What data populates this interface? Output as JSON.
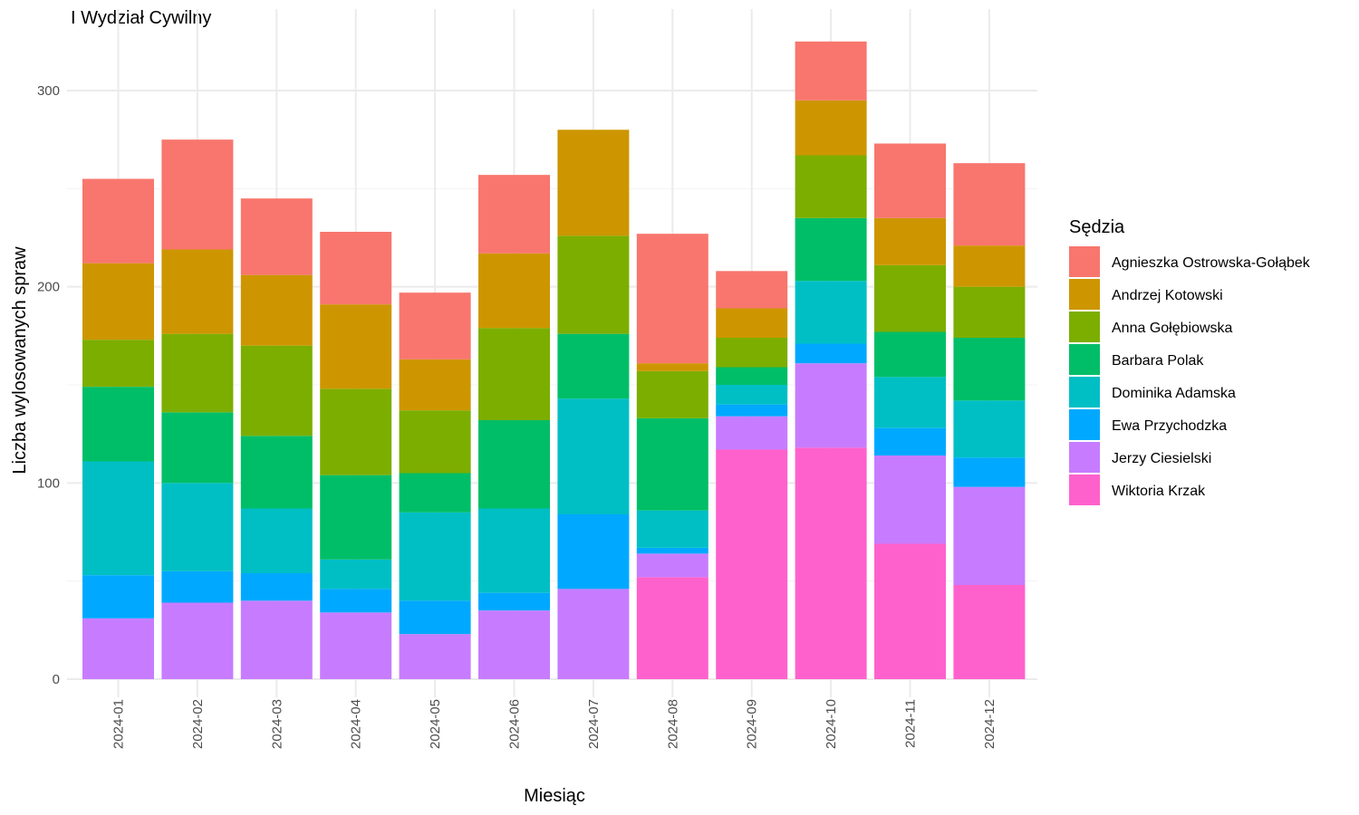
{
  "chart_data": {
    "type": "bar",
    "stacked": true,
    "title": "I Wydział Cywilny",
    "xlabel": "Miesiąc",
    "ylabel": "Liczba wylosowanych spraw",
    "ylim": [
      0,
      330
    ],
    "yticks": [
      0,
      100,
      200,
      300
    ],
    "grid": true,
    "legend_position": "right",
    "legend_title": "Sędzia",
    "categories": [
      "2024-01",
      "2024-02",
      "2024-03",
      "2024-04",
      "2024-05",
      "2024-06",
      "2024-07",
      "2024-08",
      "2024-09",
      "2024-10",
      "2024-11",
      "2024-12"
    ],
    "series": [
      {
        "name": "Agnieszka Ostrowska-Gołąbek",
        "color": "#F8766D",
        "values": [
          43,
          56,
          39,
          37,
          34,
          40,
          0,
          66,
          19,
          30,
          38,
          42
        ]
      },
      {
        "name": "Andrzej Kotowski",
        "color": "#CD9600",
        "values": [
          39,
          43,
          36,
          43,
          26,
          38,
          54,
          4,
          15,
          28,
          24,
          21
        ]
      },
      {
        "name": "Anna Gołębiowska",
        "color": "#7CAE00",
        "values": [
          24,
          40,
          46,
          44,
          32,
          47,
          50,
          24,
          15,
          32,
          34,
          26
        ]
      },
      {
        "name": "Barbara Polak",
        "color": "#00BE67",
        "values": [
          38,
          36,
          37,
          43,
          20,
          45,
          33,
          47,
          9,
          32,
          23,
          32
        ]
      },
      {
        "name": "Dominika Adamska",
        "color": "#00BFC4",
        "values": [
          58,
          45,
          33,
          15,
          45,
          43,
          59,
          19,
          10,
          32,
          26,
          29
        ]
      },
      {
        "name": "Ewa Przychodzka",
        "color": "#00A9FF",
        "values": [
          22,
          16,
          14,
          12,
          17,
          9,
          38,
          3,
          6,
          10,
          14,
          15
        ]
      },
      {
        "name": "Jerzy Ciesielski",
        "color": "#C77CFF",
        "values": [
          31,
          39,
          40,
          34,
          23,
          35,
          46,
          12,
          17,
          43,
          45,
          50
        ]
      },
      {
        "name": "Wiktoria Krzak",
        "color": "#FF61CC",
        "values": [
          0,
          0,
          0,
          0,
          0,
          0,
          0,
          52,
          117,
          118,
          69,
          48
        ]
      }
    ]
  }
}
